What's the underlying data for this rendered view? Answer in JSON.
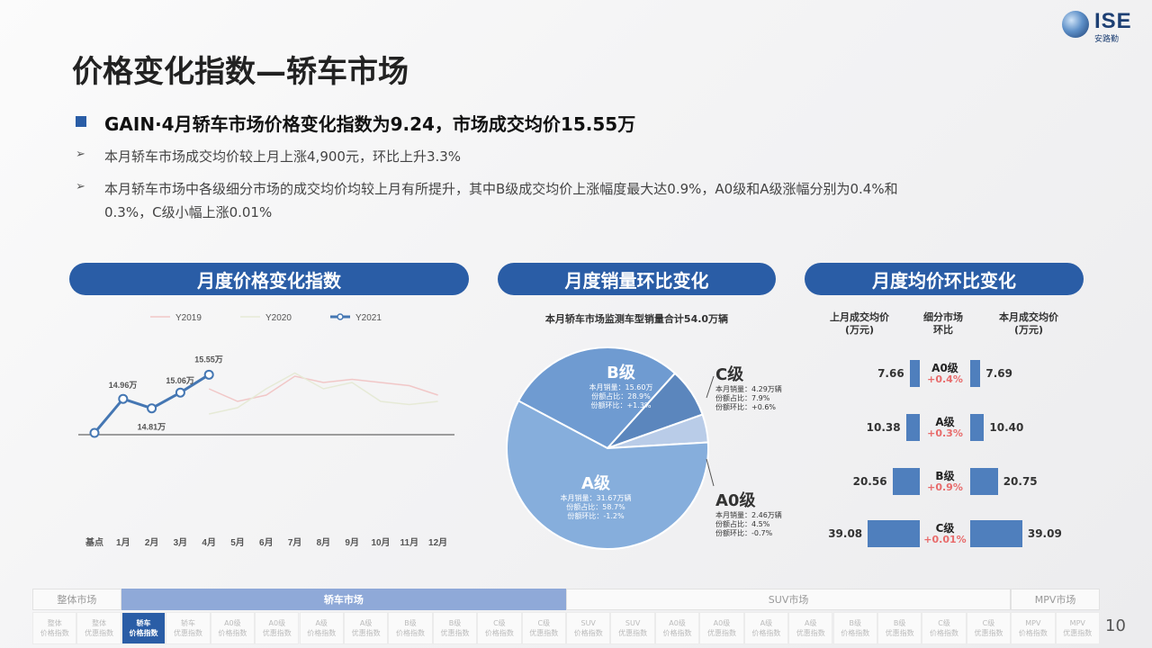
{
  "logo": {
    "text": "ISE",
    "sub": "安路勤"
  },
  "title": "价格变化指数—轿车市场",
  "headline": "GAIN·4月轿车市场价格变化指数为9.24，市场成交均价15.55万",
  "bullets": [
    {
      "arrow": "➢",
      "text": "本月轿车市场成交均价较上月上涨4,900元，环比上升3.3%"
    },
    {
      "arrow": "➢",
      "text": "本月轿车市场中各级细分市场的成交均价均较上月有所提升，其中B级成交均价上涨幅度最大达0.9%，A0级和A级涨幅分别为0.4%和",
      "text2": "0.3%，C级小幅上涨0.01%"
    }
  ],
  "panels": {
    "left": "月度价格变化指数",
    "middle": "月度销量环比变化",
    "right": "月度均价环比变化"
  },
  "line_chart": {
    "legend": [
      "Y2019",
      "Y2020",
      "Y2021"
    ],
    "categories": [
      "基点",
      "1月",
      "2月",
      "3月",
      "4月",
      "5月",
      "6月",
      "7月",
      "8月",
      "9月",
      "10月",
      "11月",
      "12月"
    ],
    "labels": [
      "14.96万",
      "14.81万",
      "15.06万",
      "15.55万"
    ]
  },
  "pie": {
    "title": "本月轿车市场监测车型销量合计54.0万辆",
    "segments": [
      {
        "name": "B级",
        "sales": "本月销量：15.60万",
        "share": "份额占比：28.9%",
        "mom": "份额环比：+1.3%",
        "color": "#6f9bd1"
      },
      {
        "name": "C级",
        "sales": "本月销量：4.29万辆",
        "share": "份额占比：7.9%",
        "mom": "份额环比：+0.6%",
        "color": "#5b86bd"
      },
      {
        "name": "A0级",
        "sales": "本月销量：2.46万辆",
        "share": "份额占比：4.5%",
        "mom": "份额环比：-0.7%",
        "color": "#b9cce8"
      },
      {
        "name": "A级",
        "sales": "本月销量：31.67万辆",
        "share": "份额占比：58.7%",
        "mom": "份额环比：-1.2%",
        "color": "#86aedc"
      }
    ]
  },
  "avg_price": {
    "headers": {
      "left": "上月成交均价\n(万元)",
      "mid": "细分市场\n环比",
      "right": "本月成交均价\n(万元)"
    },
    "rows": [
      {
        "seg": "A0级",
        "chg": "+0.4%",
        "last": "7.66",
        "cur": "7.69"
      },
      {
        "seg": "A级",
        "chg": "+0.3%",
        "last": "10.38",
        "cur": "10.40"
      },
      {
        "seg": "B级",
        "chg": "+0.9%",
        "last": "20.56",
        "cur": "20.75"
      },
      {
        "seg": "C级",
        "chg": "+0.01%",
        "last": "39.08",
        "cur": "39.09"
      }
    ]
  },
  "nav": {
    "top": [
      {
        "label": "整体市场",
        "active": false
      },
      {
        "label": "轿车市场",
        "active": true
      },
      {
        "label": "SUV市场",
        "active": false
      },
      {
        "label": "MPV市场",
        "active": false
      }
    ],
    "bottom": [
      "整体\n价格指数",
      "整体\n优惠指数",
      "轿车\n价格指数",
      "轿车\n优惠指数",
      "A0级\n价格指数",
      "A0级\n优惠指数",
      "A级\n价格指数",
      "A级\n优惠指数",
      "B级\n价格指数",
      "B级\n优惠指数",
      "C级\n价格指数",
      "C级\n优惠指数",
      "SUV\n价格指数",
      "SUV\n优惠指数",
      "A0级\n价格指数",
      "A0级\n优惠指数",
      "A级\n价格指数",
      "A级\n优惠指数",
      "B级\n价格指数",
      "B级\n优惠指数",
      "C级\n价格指数",
      "C级\n优惠指数",
      "MPV\n价格指数",
      "MPV\n优惠指数"
    ]
  },
  "page_number": "10",
  "chart_data": [
    {
      "type": "line",
      "title": "",
      "categories": [
        "基点",
        "1月",
        "2月",
        "3月",
        "4月",
        "5月",
        "6月",
        "7月",
        "8月",
        "9月",
        "10月",
        "11月",
        "12月"
      ],
      "series": [
        {
          "name": "Y2019",
          "values": [
            null,
            null,
            null,
            null,
            7.0,
            5.0,
            6.0,
            9.0,
            8.0,
            8.5,
            8.0,
            7.5,
            6.0
          ]
        },
        {
          "name": "Y2020",
          "values": [
            null,
            null,
            null,
            null,
            3.0,
            4.0,
            7.0,
            9.5,
            7.0,
            8.0,
            5.0,
            4.5,
            5.0
          ]
        },
        {
          "name": "Y2021",
          "values": [
            0,
            5.4,
            3.9,
            6.4,
            9.24,
            null,
            null,
            null,
            null,
            null,
            null,
            null,
            null
          ]
        }
      ],
      "data_labels": {
        "1月": "14.96万",
        "2月": "14.81万",
        "3月": "15.06万",
        "4月": "15.55万"
      },
      "ylim": [
        -2,
        16
      ],
      "legend": "top"
    },
    {
      "type": "pie",
      "title": "本月轿车市场监测车型销量合计54.0万辆",
      "categories": [
        "A级",
        "B级",
        "C级",
        "A0级"
      ],
      "values": [
        58.7,
        28.9,
        7.9,
        4.5
      ]
    },
    {
      "type": "bar",
      "title": "月度均价环比变化",
      "categories": [
        "A0级",
        "A级",
        "B级",
        "C级"
      ],
      "series": [
        {
          "name": "上月成交均价(万元)",
          "values": [
            7.66,
            10.38,
            20.56,
            39.08
          ]
        },
        {
          "name": "本月成交均价(万元)",
          "values": [
            7.69,
            10.4,
            20.75,
            39.09
          ]
        }
      ]
    }
  ],
  "colors": {
    "accent": "#2a5da6",
    "positive": "#e86b6b"
  }
}
